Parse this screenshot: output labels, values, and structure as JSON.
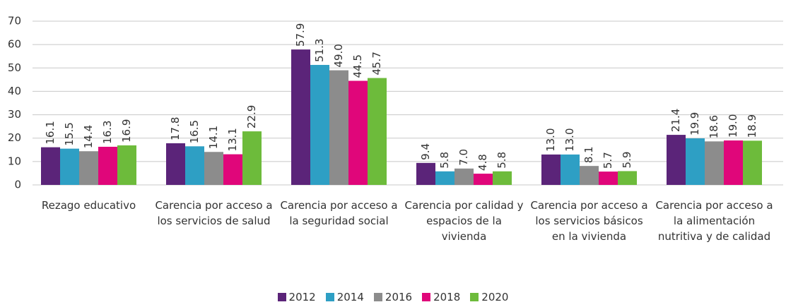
{
  "chart_data": {
    "type": "bar",
    "categories": [
      "Rezago educativo",
      "Carencia por acceso a los servicios de salud",
      "Carencia por acceso a la seguridad social",
      "Carencia por calidad y espacios de la vivienda",
      "Carencia por acceso a los servicios básicos en la vivienda",
      "Carencia por acceso a la alimentación nutritiva y de calidad"
    ],
    "series": [
      {
        "name": "2012",
        "color": "#5b2479",
        "values": [
          16.1,
          17.8,
          57.9,
          9.4,
          13.0,
          21.4
        ],
        "value_labels": [
          "16.1",
          "17.8",
          "57.9",
          "9.4",
          "13.0",
          "21.4"
        ]
      },
      {
        "name": "2014",
        "color": "#2e9fc4",
        "values": [
          15.5,
          16.5,
          51.3,
          5.8,
          13.0,
          19.9
        ],
        "value_labels": [
          "15.5",
          "16.5",
          "51.3",
          "5.8",
          "13.0",
          "19.9"
        ]
      },
      {
        "name": "2016",
        "color": "#8c8c8c",
        "values": [
          14.4,
          14.1,
          49.0,
          7.0,
          8.1,
          18.6
        ],
        "value_labels": [
          "14.4",
          "14.1",
          "49.0",
          "7.0",
          "8.1",
          "18.6"
        ]
      },
      {
        "name": "2018",
        "color": "#e0067a",
        "values": [
          16.3,
          13.1,
          44.5,
          4.8,
          5.7,
          19.0
        ],
        "value_labels": [
          "16.3",
          "13.1",
          "44.5",
          "4.8",
          "5.7",
          "19.0"
        ]
      },
      {
        "name": "2020",
        "color": "#6dbb3b",
        "values": [
          16.9,
          22.9,
          45.7,
          5.8,
          5.9,
          18.9
        ],
        "value_labels": [
          "16.9",
          "22.9",
          "45.7",
          "5.8",
          "5.9",
          "18.9"
        ]
      }
    ],
    "ylim": [
      0,
      70
    ],
    "yticks": [
      0,
      10,
      20,
      30,
      40,
      50,
      60,
      70
    ],
    "grid": true,
    "legend": "bottom"
  }
}
